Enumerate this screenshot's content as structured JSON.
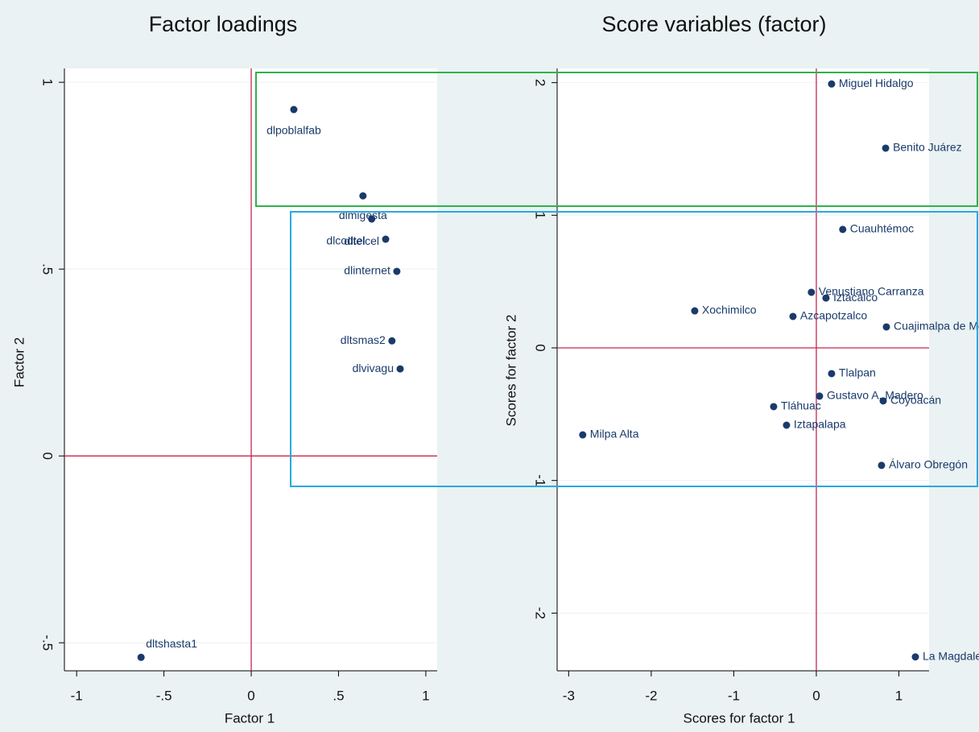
{
  "chart_data": [
    {
      "type": "scatter",
      "title": "Factor loadings",
      "xlabel": "Factor 1",
      "ylabel": "Factor 2",
      "labels": [
        "dlpoblalfab",
        "dlmigesta",
        "dlcodtel",
        "dltelcel",
        "dlinternet",
        "dltsmas2",
        "dlvivagu",
        "dltshasta1"
      ],
      "x": [
        0.244,
        0.64,
        0.69,
        0.77,
        0.834,
        0.806,
        0.853,
        -0.631
      ],
      "values": [
        0.927,
        0.696,
        0.634,
        0.58,
        0.494,
        0.308,
        0.233,
        -0.539
      ],
      "color": "#1a3a6b",
      "xlim": [
        -1.07,
        1.065
      ],
      "ylim": [
        -0.575,
        1.037
      ],
      "xticks": [
        -1,
        {
          "value": -0.5,
          "label": "-.5"
        },
        0,
        {
          "value": 0.5,
          "label": ".5"
        },
        1
      ],
      "yticks": [
        {
          "value": -0.5,
          "label": "-.5"
        },
        0,
        {
          "value": 0.5,
          "label": ".5"
        },
        1
      ],
      "grid": true
    },
    {
      "type": "scatter",
      "title": "Score variables (factor)",
      "xlabel": "Scores for factor 1",
      "ylabel": "Scores for factor 2",
      "labels": [
        "Miguel Hidalgo",
        "Benito Juárez",
        "Cuauhtémoc",
        "Venustiano Carranza",
        "Iztacalco",
        "Xochimilco",
        "Azcapotzalco",
        "Cuajimalpa de Morelos",
        "Tlalpan",
        "Gustavo A. Madero",
        "Coyoacán",
        "Tláhuac",
        "Iztapalapa",
        "Milpa Alta",
        "Álvaro Obregón",
        "La Magdalena Contreras"
      ],
      "x": [
        0.185,
        0.84,
        0.32,
        -0.06,
        0.117,
        -1.473,
        -0.283,
        0.849,
        0.185,
        0.039,
        0.81,
        -0.517,
        -0.361,
        -2.83,
        0.79,
        1.2
      ],
      "values": [
        1.99,
        1.506,
        0.893,
        0.419,
        0.376,
        0.279,
        0.237,
        0.158,
        -0.194,
        -0.364,
        -0.4,
        -0.443,
        -0.583,
        -0.656,
        -0.886,
        -2.33
      ],
      "color": "#1a3a6b",
      "xlim": [
        -3.14,
        1.366
      ],
      "ylim": [
        -2.435,
        2.107
      ],
      "xticks": [
        -3,
        -2,
        -1,
        0,
        1
      ],
      "yticks": [
        -2,
        -1,
        0,
        1,
        2
      ],
      "grid": true
    }
  ]
}
